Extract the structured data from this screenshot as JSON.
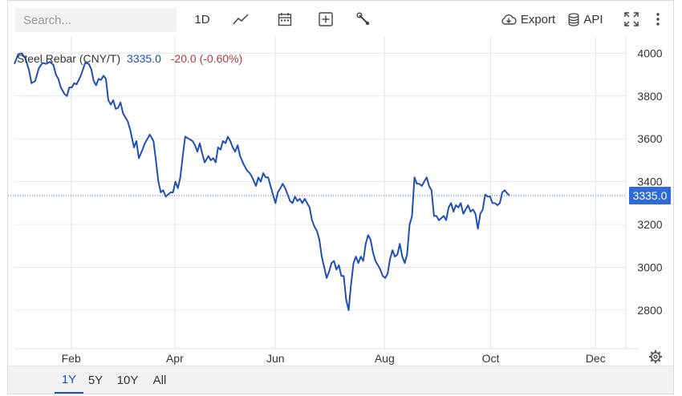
{
  "toolbar": {
    "search_placeholder": "Search...",
    "interval_label": "1D",
    "line_icon": "line-chart-icon",
    "calendar_icon": "calendar-icon",
    "compare_icon": "plus-box-icon",
    "settings_tool_icon": "wrench-icon",
    "export_label": "Export",
    "export_icon": "cloud-download-icon",
    "api_label": "API",
    "api_icon": "database-icon",
    "fullscreen_icon": "fullscreen-icon",
    "menu_icon": "more-vertical-icon"
  },
  "legend": {
    "name": "Steel Rebar (CNY/T)",
    "price": "3335.0",
    "change": "-20.0 (-0.60%)"
  },
  "current_label": "3335.0",
  "settings_icon": "gear-icon",
  "ranges": [
    {
      "label": "1Y",
      "active": true
    },
    {
      "label": "5Y",
      "active": false
    },
    {
      "label": "10Y",
      "active": false
    },
    {
      "label": "All",
      "active": false
    }
  ],
  "colors": {
    "line": "#1f4fb5",
    "negative": "#b23a3a",
    "badge": "#2f6bd8"
  },
  "chart_data": {
    "type": "line",
    "title": "Steel Rebar (CNY/T)",
    "xlabel": "",
    "ylabel": "",
    "ylim": [
      2620,
      4080
    ],
    "yticks": [
      2800,
      3000,
      3200,
      3400,
      3600,
      3800,
      4000
    ],
    "xticks": [
      {
        "label": "Feb",
        "t": 0.093
      },
      {
        "label": "Apr",
        "t": 0.263
      },
      {
        "label": "Jun",
        "t": 0.428
      },
      {
        "label": "Aug",
        "t": 0.607
      },
      {
        "label": "Oct",
        "t": 0.781
      },
      {
        "label": "Dec",
        "t": 0.953
      }
    ],
    "grid": true,
    "current_value": 3335.0,
    "series": [
      {
        "name": "Steel Rebar",
        "points": [
          [
            0.0,
            3950
          ],
          [
            0.006,
            3995
          ],
          [
            0.012,
            4000
          ],
          [
            0.018,
            3975
          ],
          [
            0.024,
            3920
          ],
          [
            0.028,
            3860
          ],
          [
            0.034,
            3870
          ],
          [
            0.04,
            3930
          ],
          [
            0.046,
            3955
          ],
          [
            0.052,
            3950
          ],
          [
            0.058,
            3960
          ],
          [
            0.064,
            3945
          ],
          [
            0.068,
            3900
          ],
          [
            0.072,
            3880
          ],
          [
            0.076,
            3840
          ],
          [
            0.082,
            3810
          ],
          [
            0.086,
            3800
          ],
          [
            0.09,
            3840
          ],
          [
            0.094,
            3840
          ],
          [
            0.098,
            3860
          ],
          [
            0.102,
            3855
          ],
          [
            0.108,
            3890
          ],
          [
            0.112,
            3920
          ],
          [
            0.116,
            3955
          ],
          [
            0.122,
            3950
          ],
          [
            0.126,
            3925
          ],
          [
            0.13,
            3870
          ],
          [
            0.134,
            3850
          ],
          [
            0.138,
            3880
          ],
          [
            0.142,
            3875
          ],
          [
            0.146,
            3895
          ],
          [
            0.15,
            3880
          ],
          [
            0.154,
            3780
          ],
          [
            0.158,
            3760
          ],
          [
            0.162,
            3780
          ],
          [
            0.166,
            3740
          ],
          [
            0.17,
            3745
          ],
          [
            0.174,
            3770
          ],
          [
            0.178,
            3720
          ],
          [
            0.182,
            3700
          ],
          [
            0.186,
            3680
          ],
          [
            0.19,
            3640
          ],
          [
            0.196,
            3560
          ],
          [
            0.2,
            3590
          ],
          [
            0.204,
            3510
          ],
          [
            0.21,
            3550
          ],
          [
            0.214,
            3580
          ],
          [
            0.218,
            3600
          ],
          [
            0.222,
            3620
          ],
          [
            0.228,
            3590
          ],
          [
            0.232,
            3500
          ],
          [
            0.236,
            3400
          ],
          [
            0.24,
            3350
          ],
          [
            0.244,
            3360
          ],
          [
            0.248,
            3330
          ],
          [
            0.252,
            3340
          ],
          [
            0.256,
            3350
          ],
          [
            0.26,
            3350
          ],
          [
            0.264,
            3400
          ],
          [
            0.268,
            3370
          ],
          [
            0.272,
            3420
          ],
          [
            0.276,
            3520
          ],
          [
            0.28,
            3610
          ],
          [
            0.286,
            3600
          ],
          [
            0.292,
            3590
          ],
          [
            0.296,
            3570
          ],
          [
            0.3,
            3540
          ],
          [
            0.304,
            3580
          ],
          [
            0.308,
            3530
          ],
          [
            0.312,
            3490
          ],
          [
            0.318,
            3520
          ],
          [
            0.322,
            3500
          ],
          [
            0.326,
            3510
          ],
          [
            0.33,
            3490
          ],
          [
            0.334,
            3560
          ],
          [
            0.338,
            3550
          ],
          [
            0.342,
            3590
          ],
          [
            0.346,
            3580
          ],
          [
            0.35,
            3610
          ],
          [
            0.354,
            3590
          ],
          [
            0.358,
            3560
          ],
          [
            0.362,
            3540
          ],
          [
            0.366,
            3570
          ],
          [
            0.37,
            3520
          ],
          [
            0.376,
            3480
          ],
          [
            0.382,
            3450
          ],
          [
            0.386,
            3440
          ],
          [
            0.39,
            3420
          ],
          [
            0.396,
            3380
          ],
          [
            0.4,
            3420
          ],
          [
            0.404,
            3400
          ],
          [
            0.408,
            3440
          ],
          [
            0.412,
            3420
          ],
          [
            0.416,
            3420
          ],
          [
            0.42,
            3380
          ],
          [
            0.424,
            3340
          ],
          [
            0.428,
            3300
          ],
          [
            0.432,
            3350
          ],
          [
            0.436,
            3370
          ],
          [
            0.44,
            3390
          ],
          [
            0.444,
            3370
          ],
          [
            0.448,
            3340
          ],
          [
            0.452,
            3310
          ],
          [
            0.456,
            3300
          ],
          [
            0.46,
            3330
          ],
          [
            0.464,
            3310
          ],
          [
            0.468,
            3320
          ],
          [
            0.472,
            3300
          ],
          [
            0.476,
            3320
          ],
          [
            0.48,
            3300
          ],
          [
            0.484,
            3280
          ],
          [
            0.488,
            3220
          ],
          [
            0.492,
            3190
          ],
          [
            0.496,
            3170
          ],
          [
            0.5,
            3130
          ],
          [
            0.504,
            3050
          ],
          [
            0.508,
            3000
          ],
          [
            0.512,
            2950
          ],
          [
            0.516,
            2980
          ],
          [
            0.52,
            3020
          ],
          [
            0.524,
            3030
          ],
          [
            0.528,
            2990
          ],
          [
            0.532,
            3010
          ],
          [
            0.536,
            2960
          ],
          [
            0.54,
            2960
          ],
          [
            0.544,
            2850
          ],
          [
            0.548,
            2800
          ],
          [
            0.552,
            2920
          ],
          [
            0.556,
            3020
          ],
          [
            0.56,
            3050
          ],
          [
            0.564,
            3020
          ],
          [
            0.568,
            3050
          ],
          [
            0.572,
            3030
          ],
          [
            0.576,
            3110
          ],
          [
            0.58,
            3150
          ],
          [
            0.584,
            3130
          ],
          [
            0.588,
            3070
          ],
          [
            0.592,
            3030
          ],
          [
            0.596,
            3010
          ],
          [
            0.6,
            2990
          ],
          [
            0.604,
            2960
          ],
          [
            0.608,
            2950
          ],
          [
            0.612,
            2970
          ],
          [
            0.616,
            3040
          ],
          [
            0.62,
            3080
          ],
          [
            0.624,
            3050
          ],
          [
            0.628,
            3060
          ],
          [
            0.632,
            3110
          ],
          [
            0.636,
            3050
          ],
          [
            0.64,
            3020
          ],
          [
            0.644,
            3060
          ],
          [
            0.648,
            3200
          ],
          [
            0.652,
            3240
          ],
          [
            0.656,
            3420
          ],
          [
            0.66,
            3390
          ],
          [
            0.664,
            3390
          ],
          [
            0.668,
            3380
          ],
          [
            0.672,
            3400
          ],
          [
            0.676,
            3420
          ],
          [
            0.68,
            3380
          ],
          [
            0.684,
            3360
          ],
          [
            0.688,
            3240
          ],
          [
            0.692,
            3240
          ],
          [
            0.696,
            3220
          ],
          [
            0.7,
            3230
          ],
          [
            0.704,
            3240
          ],
          [
            0.708,
            3220
          ],
          [
            0.712,
            3280
          ],
          [
            0.716,
            3300
          ],
          [
            0.72,
            3260
          ],
          [
            0.724,
            3290
          ],
          [
            0.728,
            3280
          ],
          [
            0.732,
            3300
          ],
          [
            0.736,
            3250
          ],
          [
            0.74,
            3270
          ],
          [
            0.744,
            3290
          ],
          [
            0.748,
            3260
          ],
          [
            0.752,
            3270
          ],
          [
            0.756,
            3250
          ],
          [
            0.76,
            3180
          ],
          [
            0.764,
            3250
          ],
          [
            0.768,
            3270
          ],
          [
            0.772,
            3340
          ],
          [
            0.776,
            3330
          ],
          [
            0.78,
            3330
          ],
          [
            0.784,
            3300
          ],
          [
            0.788,
            3300
          ],
          [
            0.792,
            3290
          ],
          [
            0.796,
            3300
          ],
          [
            0.8,
            3350
          ],
          [
            0.804,
            3360
          ],
          [
            0.808,
            3345
          ],
          [
            0.812,
            3335
          ]
        ]
      }
    ]
  }
}
